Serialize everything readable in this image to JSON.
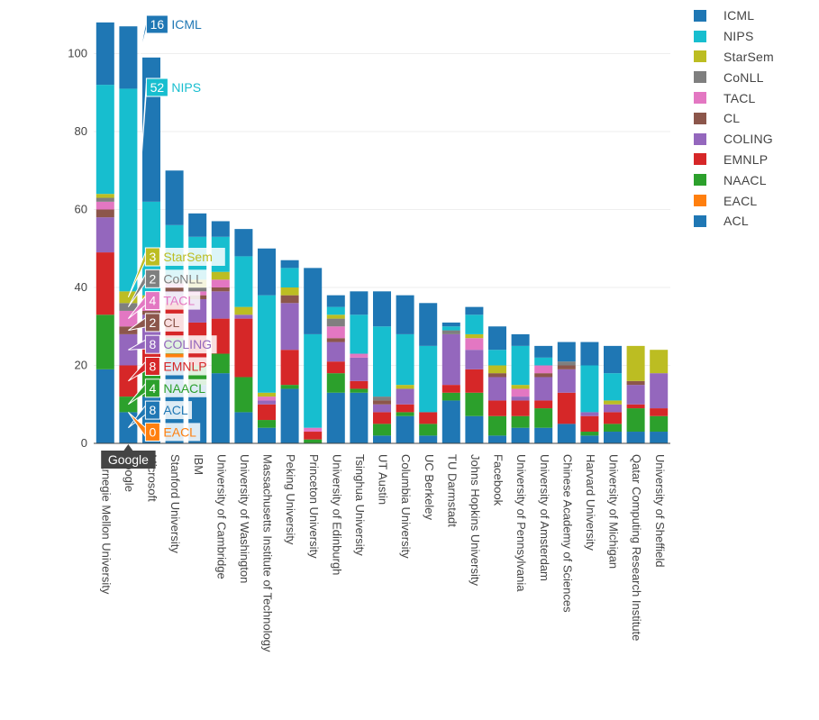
{
  "chart_data": {
    "type": "bar",
    "stacked": true,
    "ylim": [
      0,
      110
    ],
    "yticks": [
      0,
      20,
      40,
      60,
      80,
      100
    ],
    "legend_position": "top-right",
    "categories": [
      "Carnegie Mellon University",
      "Google",
      "Microsoft",
      "Stanford University",
      "IBM",
      "University of Cambridge",
      "University of Washington",
      "Massachusetts Institute of Technology",
      "Peking University",
      "Princeton University",
      "University of Edinburgh",
      "Tsinghua University",
      "UT Austin",
      "Columbia University",
      "UC Berkeley",
      "TU Darmstadt",
      "Johns Hopkins University",
      "Facebook",
      "University of Pennsylvania",
      "University of Amsterdam",
      "Chinese Academy of Sciences",
      "Harvard University",
      "University of Michigan",
      "Qatar Computing Research Institute",
      "University of Sheffield"
    ],
    "series": [
      {
        "name": "ACL",
        "color": "#1f77b4",
        "values": [
          19,
          8,
          12,
          22,
          15,
          18,
          8,
          4,
          14,
          0,
          13,
          13,
          2,
          7,
          2,
          11,
          7,
          2,
          4,
          4,
          5,
          2,
          3,
          3,
          3
        ]
      },
      {
        "name": "EACL",
        "color": "#ff7f0e",
        "values": [
          0,
          0,
          0,
          1,
          0,
          0,
          0,
          0,
          0,
          0,
          0,
          0,
          0,
          0,
          0,
          0,
          0,
          0,
          0,
          0,
          0,
          0,
          0,
          0,
          0
        ]
      },
      {
        "name": "NAACL",
        "color": "#2ca02c",
        "values": [
          14,
          4,
          7,
          4,
          5,
          5,
          9,
          2,
          1,
          1,
          5,
          1,
          3,
          1,
          3,
          2,
          6,
          5,
          3,
          5,
          0,
          1,
          2,
          6,
          4
        ]
      },
      {
        "name": "EMNLP",
        "color": "#d62728",
        "values": [
          16,
          8,
          7,
          9,
          11,
          9,
          15,
          4,
          9,
          2,
          3,
          2,
          3,
          2,
          3,
          2,
          6,
          4,
          4,
          2,
          8,
          4,
          3,
          1,
          2
        ]
      },
      {
        "name": "COLING",
        "color": "#9467bd",
        "values": [
          9,
          8,
          7,
          3,
          6,
          7,
          1,
          1,
          12,
          0,
          5,
          6,
          2,
          4,
          0,
          13,
          5,
          6,
          1,
          6,
          6,
          1,
          2,
          5,
          9
        ]
      },
      {
        "name": "CL",
        "color": "#8c564b",
        "values": [
          2,
          2,
          1,
          1,
          1,
          1,
          0,
          0,
          2,
          0,
          1,
          0,
          1,
          0,
          0,
          0,
          0,
          1,
          0,
          1,
          1,
          0,
          0,
          1,
          0
        ]
      },
      {
        "name": "TACL",
        "color": "#e377c2",
        "values": [
          2,
          4,
          2,
          1,
          1,
          2,
          0,
          1,
          0,
          1,
          3,
          1,
          0,
          0,
          0,
          0,
          3,
          0,
          2,
          2,
          0,
          0,
          0,
          0,
          0
        ]
      },
      {
        "name": "CoNLL",
        "color": "#7f7f7f",
        "values": [
          1,
          2,
          1,
          1,
          1,
          0,
          0,
          0,
          0,
          0,
          2,
          0,
          1,
          0,
          0,
          1,
          0,
          0,
          0,
          0,
          1,
          0,
          0,
          0,
          0
        ]
      },
      {
        "name": "StarSem",
        "color": "#bcbd22",
        "values": [
          1,
          3,
          1,
          0,
          2,
          2,
          2,
          1,
          2,
          0,
          1,
          0,
          0,
          1,
          0,
          0,
          1,
          2,
          1,
          0,
          0,
          0,
          1,
          9,
          6
        ]
      },
      {
        "name": "NIPS",
        "color": "#17becf",
        "values": [
          28,
          52,
          24,
          14,
          11,
          9,
          13,
          25,
          5,
          24,
          2,
          10,
          18,
          13,
          17,
          1,
          5,
          4,
          10,
          2,
          0,
          12,
          7,
          0,
          0
        ]
      },
      {
        "name": "ICML",
        "color": "#1f77b4",
        "values": [
          16,
          16,
          37,
          14,
          6,
          4,
          7,
          12,
          2,
          17,
          3,
          6,
          9,
          10,
          11,
          1,
          2,
          6,
          3,
          3,
          5,
          6,
          7,
          0,
          0
        ]
      }
    ],
    "hover_category": "Google",
    "hover_labels": [
      {
        "series": "ICML",
        "value": "16"
      },
      {
        "series": "NIPS",
        "value": "52"
      },
      {
        "series": "StarSem",
        "value": "3"
      },
      {
        "series": "CoNLL",
        "value": "2"
      },
      {
        "series": "TACL",
        "value": "4"
      },
      {
        "series": "CL",
        "value": "2"
      },
      {
        "series": "COLING",
        "value": "8"
      },
      {
        "series": "EMNLP",
        "value": "8"
      },
      {
        "series": "NAACL",
        "value": "4"
      },
      {
        "series": "ACL",
        "value": "8"
      },
      {
        "series": "EACL",
        "value": "0"
      }
    ]
  }
}
